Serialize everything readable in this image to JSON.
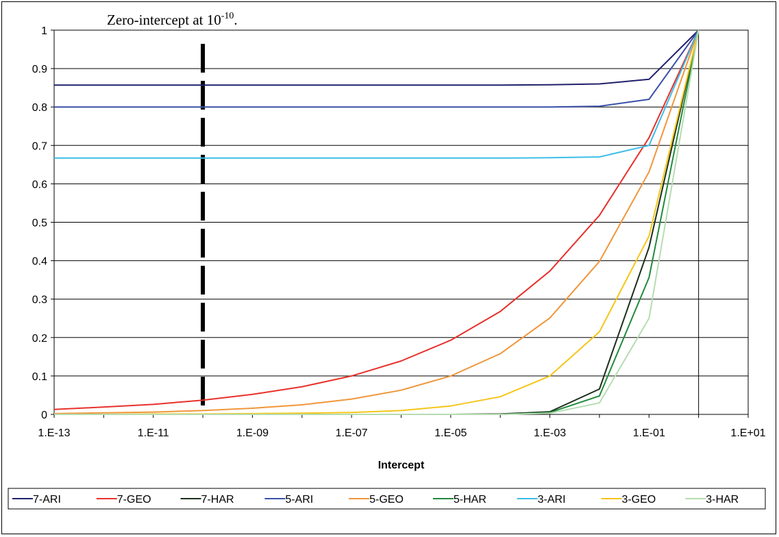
{
  "chart_data": {
    "type": "line",
    "title": "",
    "xlabel": "Intercept",
    "ylabel": "",
    "x_scale": "log",
    "xlim": [
      1e-13,
      10
    ],
    "ylim": [
      0,
      1
    ],
    "grid": "horizontal",
    "legend_position": "bottom",
    "x_tick_labels": [
      "1.E-13",
      "1.E-11",
      "1.E-09",
      "1.E-07",
      "1.E-05",
      "1.E-03",
      "1.E-01",
      "1.E+01"
    ],
    "x_ticks": [
      1e-13,
      1e-11,
      1e-09,
      1e-07,
      1e-05,
      0.001,
      0.1,
      10
    ],
    "y_ticks": [
      0,
      0.1,
      0.2,
      0.3,
      0.4,
      0.5,
      0.6,
      0.7,
      0.8,
      0.9,
      1
    ],
    "y_tick_labels": [
      "0",
      "0.1",
      "0.2",
      "0.3",
      "0.4",
      "0.5",
      "0.6",
      "0.7",
      "0.8",
      "0.9",
      "1"
    ],
    "annotation": {
      "text_main": "Zero-intercept at 10",
      "text_sup": "-10",
      "text_tail": ".",
      "x": 1e-10
    },
    "x": [
      1e-13,
      1e-12,
      1e-11,
      1e-10,
      1e-09,
      1e-08,
      1e-07,
      1e-06,
      1e-05,
      0.0001,
      0.001,
      0.01,
      0.1,
      1
    ],
    "series": [
      {
        "name": "7-ARI",
        "color": "#1f1f6b",
        "values": [
          0.857,
          0.857,
          0.857,
          0.857,
          0.857,
          0.857,
          0.857,
          0.857,
          0.857,
          0.857,
          0.858,
          0.86,
          0.872,
          1.0
        ]
      },
      {
        "name": "7-GEO",
        "color": "#e8302a",
        "values": [
          0.013,
          0.019,
          0.026,
          0.037,
          0.052,
          0.072,
          0.1,
          0.139,
          0.193,
          0.268,
          0.373,
          0.518,
          0.72,
          1.0
        ]
      },
      {
        "name": "7-HAR",
        "color": "#1a2e1a",
        "values": [
          0.0,
          0.0,
          0.0,
          0.0,
          0.0,
          0.0,
          0.0,
          0.0,
          0.0,
          0.001,
          0.007,
          0.066,
          0.435,
          1.0
        ]
      },
      {
        "name": "5-ARI",
        "color": "#3a4fa8",
        "values": [
          0.8,
          0.8,
          0.8,
          0.8,
          0.8,
          0.8,
          0.8,
          0.8,
          0.8,
          0.8,
          0.8,
          0.802,
          0.82,
          1.0
        ]
      },
      {
        "name": "5-GEO",
        "color": "#f0963a",
        "values": [
          0.002,
          0.004,
          0.006,
          0.01,
          0.016,
          0.025,
          0.04,
          0.063,
          0.1,
          0.158,
          0.251,
          0.398,
          0.631,
          1.0
        ]
      },
      {
        "name": "5-HAR",
        "color": "#1f8a3a",
        "values": [
          0.0,
          0.0,
          0.0,
          0.0,
          0.0,
          0.0,
          0.0,
          0.0,
          0.0,
          0.0,
          0.005,
          0.048,
          0.356,
          1.0
        ]
      },
      {
        "name": "3-ARI",
        "color": "#3cbde8",
        "values": [
          0.667,
          0.667,
          0.667,
          0.667,
          0.667,
          0.667,
          0.667,
          0.667,
          0.667,
          0.667,
          0.668,
          0.67,
          0.7,
          1.0
        ]
      },
      {
        "name": "3-GEO",
        "color": "#f5c518",
        "values": [
          0.0,
          0.0,
          0.001,
          0.001,
          0.002,
          0.003,
          0.005,
          0.01,
          0.022,
          0.046,
          0.1,
          0.215,
          0.464,
          1.0
        ]
      },
      {
        "name": "3-HAR",
        "color": "#b5dcb0",
        "values": [
          0.0,
          0.0,
          0.0,
          0.0,
          0.0,
          0.0,
          0.0,
          0.0,
          0.0,
          0.0,
          0.003,
          0.03,
          0.25,
          1.0
        ]
      }
    ]
  }
}
